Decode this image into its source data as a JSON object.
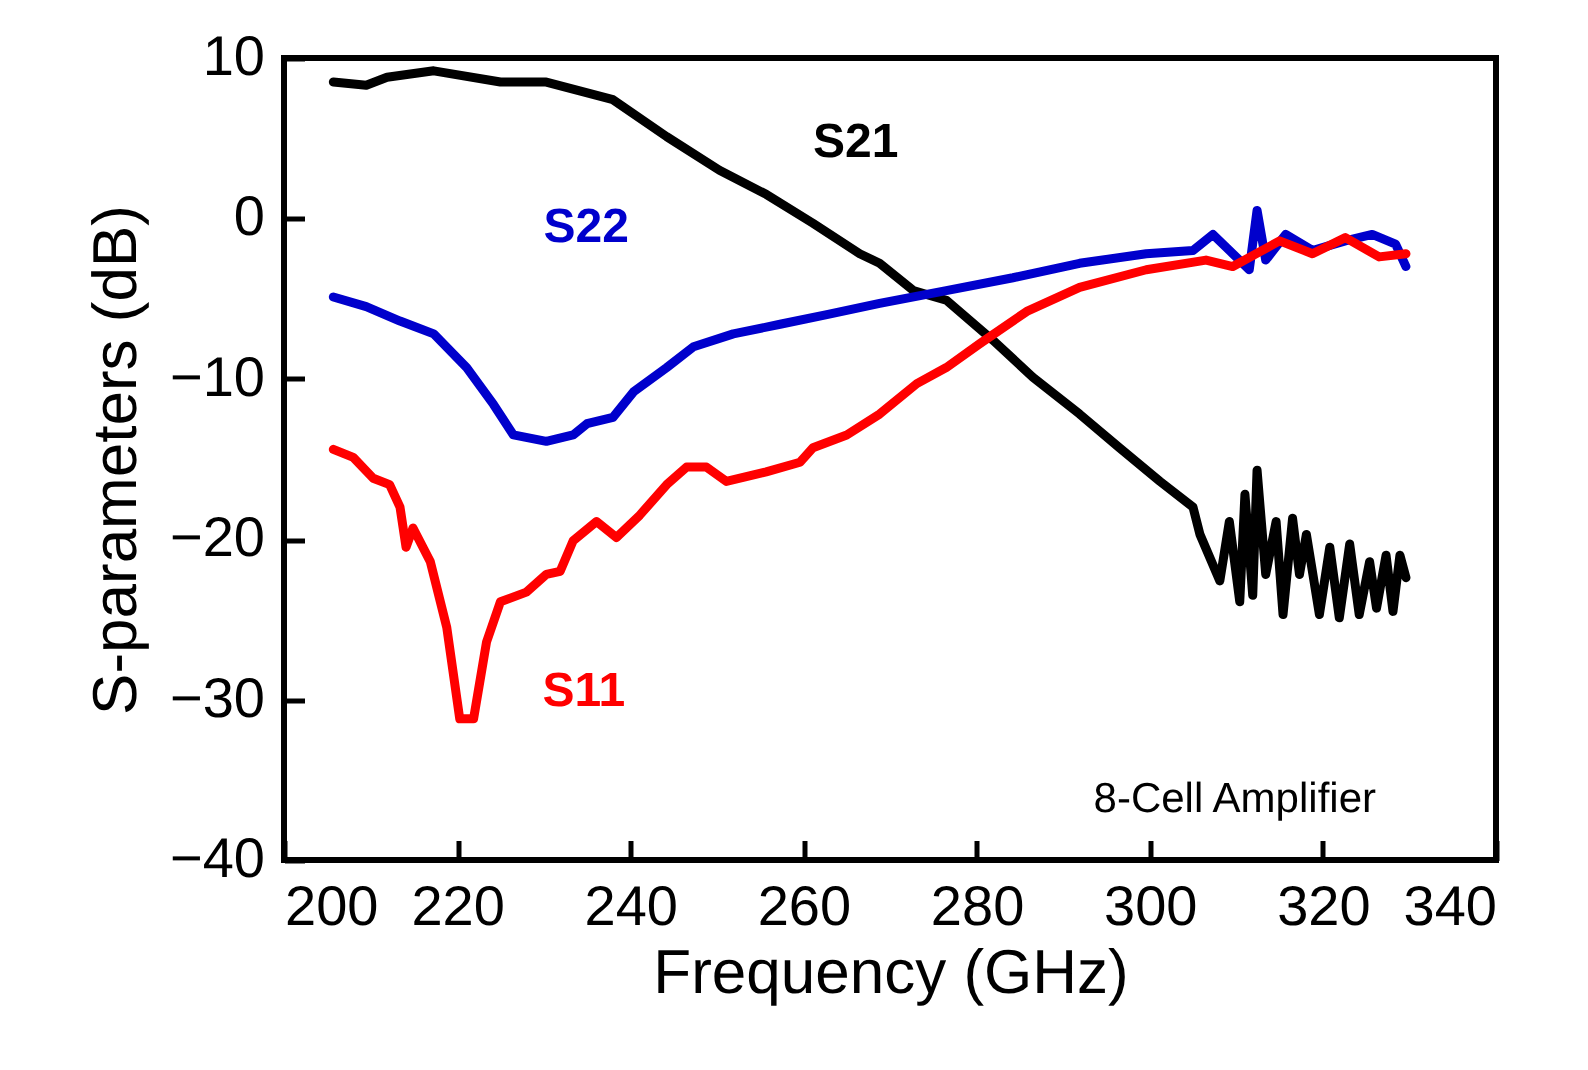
{
  "chart_data": {
    "type": "line",
    "xlabel": "Frequency (GHz)",
    "ylabel": "S-parameters (dB)",
    "xlim": [
      200,
      340
    ],
    "xticks": [
      200,
      220,
      240,
      260,
      280,
      300,
      320,
      340
    ],
    "ylim": [
      -40,
      10
    ],
    "yticks": [
      -40,
      -30,
      -20,
      -10,
      0,
      10
    ],
    "grid": false,
    "legend": false,
    "marker": "none",
    "line_style": "solid",
    "annotations": [
      "8-Cell Amplifier"
    ],
    "series": [
      {
        "name": "S21",
        "color": "#000000",
        "x": [
          205.7,
          209.5,
          211.9,
          217.3,
          225,
          230.3,
          238,
          244.2,
          250.3,
          255.7,
          261.1,
          266.5,
          268.8,
          272.7,
          276.5,
          281.9,
          286.5,
          291.9,
          296.5,
          301.2,
          305,
          305.8,
          308.1,
          309.2,
          310.4,
          311,
          311.9,
          312.4,
          313.4,
          314.6,
          315.4,
          316.5,
          317.3,
          318.1,
          319.6,
          320.8,
          321.9,
          323.1,
          324.2,
          325.4,
          326.2,
          327.3,
          328.1,
          328.9,
          329.6
        ],
        "values": [
          8.5,
          8.3,
          8.8,
          9.2,
          8.5,
          8.5,
          7.4,
          5.1,
          3.0,
          1.5,
          -0.3,
          -2.2,
          -2.8,
          -4.5,
          -5.1,
          -7.6,
          -9.9,
          -12.2,
          -14.3,
          -16.4,
          -18,
          -19.7,
          -22.6,
          -18.9,
          -23.9,
          -17.2,
          -23.5,
          -15.7,
          -22.2,
          -18.9,
          -24.7,
          -18.7,
          -22.2,
          -19.7,
          -24.7,
          -20.5,
          -24.9,
          -20.3,
          -24.7,
          -21.4,
          -24.3,
          -21,
          -24.5,
          -21,
          -22.4
        ]
      },
      {
        "name": "S22",
        "color": "#0000cc",
        "x": [
          205.7,
          209.5,
          213.4,
          217.3,
          221.1,
          224.2,
          226.5,
          230.3,
          233.4,
          235,
          238,
          240.4,
          244.2,
          247.3,
          251.9,
          257.3,
          262.7,
          268.8,
          276.5,
          284.2,
          291.9,
          299.6,
          305,
          307.3,
          309.6,
          311.5,
          312.4,
          313.4,
          315.7,
          318.8,
          322.6,
          325.7,
          328.4,
          329.6
        ],
        "values": [
          -4.9,
          -5.5,
          -6.4,
          -7.2,
          -9.3,
          -11.6,
          -13.5,
          -13.9,
          -13.5,
          -12.8,
          -12.4,
          -10.8,
          -9.3,
          -8.0,
          -7.2,
          -6.6,
          -6.0,
          -5.3,
          -4.5,
          -3.7,
          -2.8,
          -2.2,
          -2.0,
          -1.0,
          -2.2,
          -3.2,
          0.5,
          -2.6,
          -1.0,
          -2.0,
          -1.4,
          -1.0,
          -1.6,
          -3.0
        ]
      },
      {
        "name": "S11",
        "color": "#ff0000",
        "x": [
          205.7,
          208,
          210.3,
          212.2,
          213.4,
          214.1,
          214.9,
          216.9,
          218.8,
          220.3,
          221.9,
          223.4,
          225,
          228,
          230.3,
          231.9,
          233.4,
          236.1,
          238.4,
          241.1,
          244.2,
          246.5,
          248.8,
          251.1,
          255.7,
          259.6,
          261.1,
          265,
          268.8,
          273.1,
          276.5,
          280.4,
          285.8,
          291.9,
          299.6,
          306.5,
          309.6,
          315,
          318.8,
          322.6,
          326.5,
          329.6
        ],
        "values": [
          -14.4,
          -14.9,
          -16.2,
          -16.6,
          -18,
          -20.5,
          -19.3,
          -21.4,
          -25.5,
          -31.2,
          -31.2,
          -26.4,
          -23.9,
          -23.3,
          -22.2,
          -22,
          -20.1,
          -18.9,
          -19.9,
          -18.5,
          -16.6,
          -15.5,
          -15.5,
          -16.4,
          -15.8,
          -15.2,
          -14.3,
          -13.5,
          -12.2,
          -10.3,
          -9.3,
          -7.8,
          -5.8,
          -4.3,
          -3.2,
          -2.6,
          -3.0,
          -1.4,
          -2.2,
          -1.2,
          -2.4,
          -2.2
        ]
      }
    ]
  }
}
